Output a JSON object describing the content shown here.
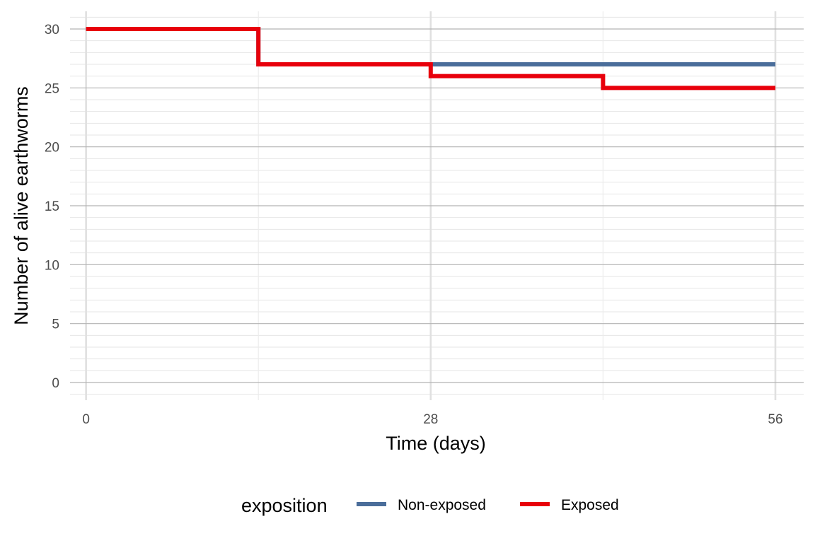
{
  "chart_data": {
    "type": "line",
    "step": true,
    "xlabel": "Time (days)",
    "ylabel": "Number of alive earthworms",
    "xlim": [
      -1.3,
      58.3
    ],
    "ylim": [
      -1.5,
      31.5
    ],
    "x_ticks": [
      0,
      28,
      56
    ],
    "y_ticks": [
      0,
      5,
      10,
      15,
      20,
      25,
      30
    ],
    "x_minor": [
      14,
      42
    ],
    "y_minor_step": 1,
    "grid": true,
    "legend": {
      "title": "exposition",
      "position": "bottom"
    },
    "series": [
      {
        "name": "Non-exposed",
        "color": "#4a6d9a",
        "x": [
          0,
          14,
          28,
          42,
          56
        ],
        "y": [
          30,
          27,
          27,
          27,
          27
        ]
      },
      {
        "name": "Exposed",
        "color": "#e8000b",
        "x": [
          0,
          14,
          28,
          42,
          56
        ],
        "y": [
          30,
          27,
          26,
          25,
          25
        ]
      }
    ]
  }
}
